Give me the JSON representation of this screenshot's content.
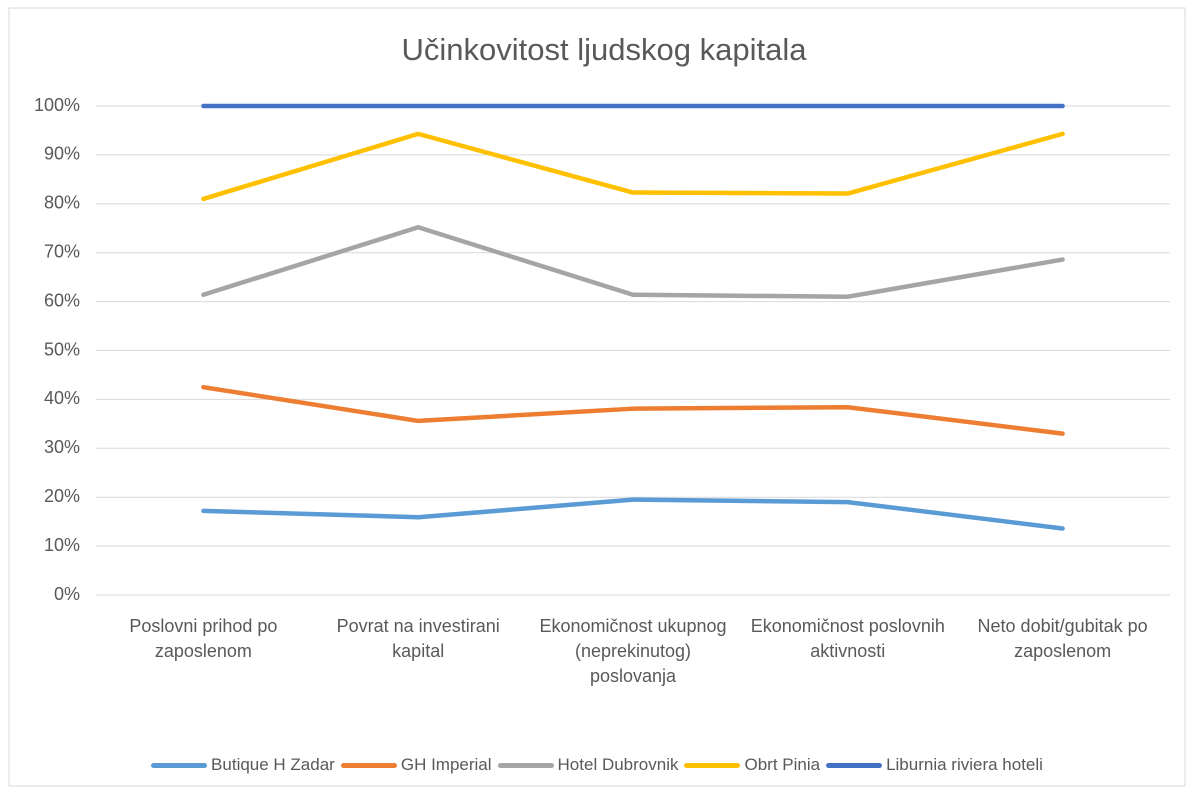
{
  "chart_data": {
    "type": "line",
    "title": "Učinkovitost ljudskog kapitala",
    "categories": [
      "Poslovni prihod po zaposlenom",
      "Povrat na investirani kapital",
      "Ekonomičnost ukupnog (neprekinutog) poslovanja",
      "Ekonomičnost poslovnih aktivnosti",
      "Neto dobit/gubitak po zaposlenom"
    ],
    "series": [
      {
        "name": "Butique H Zadar",
        "color": "#5b9bd5",
        "values": [
          17.2,
          15.9,
          19.5,
          19.0,
          13.6
        ]
      },
      {
        "name": "GH Imperial",
        "color": "#ed7d31",
        "values": [
          42.5,
          35.6,
          38.1,
          38.4,
          33.0
        ]
      },
      {
        "name": "Hotel Dubrovnik",
        "color": "#a5a5a5",
        "values": [
          61.4,
          75.2,
          61.4,
          61.0,
          68.6
        ]
      },
      {
        "name": "Obrt Pinia",
        "color": "#ffc000",
        "values": [
          81.0,
          94.3,
          82.3,
          82.1,
          94.3
        ]
      },
      {
        "name": "Liburnia riviera hoteli",
        "color": "#4472c4",
        "values": [
          100,
          100,
          100,
          100,
          100
        ]
      }
    ],
    "ylim": [
      0,
      100
    ],
    "yticks": [
      {
        "value": 0,
        "label": "0%"
      },
      {
        "value": 10,
        "label": "10%"
      },
      {
        "value": 20,
        "label": "20%"
      },
      {
        "value": 30,
        "label": "30%"
      },
      {
        "value": 40,
        "label": "40%"
      },
      {
        "value": 50,
        "label": "50%"
      },
      {
        "value": 60,
        "label": "60%"
      },
      {
        "value": 70,
        "label": "70%"
      },
      {
        "value": 80,
        "label": "80%"
      },
      {
        "value": 90,
        "label": "90%"
      },
      {
        "value": 100,
        "label": "100%"
      }
    ],
    "grid": true,
    "legend": "bottom"
  }
}
